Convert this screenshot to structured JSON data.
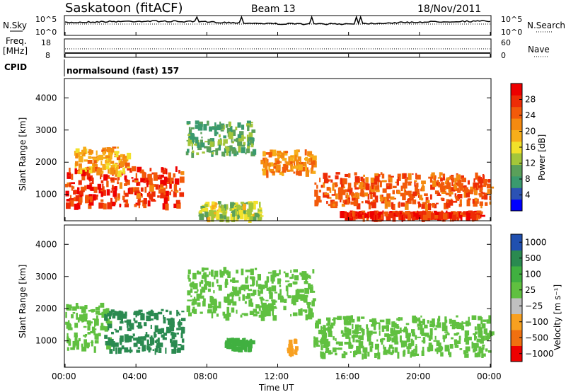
{
  "header": {
    "station": "Saskatoon (fitACF)",
    "beam": "Beam 13",
    "date": "18/Nov/2011"
  },
  "panels": {
    "nsky_label": "N.Sky",
    "nsearch_label": "N.Search",
    "noise_ticks": [
      "10^5",
      "10^0"
    ],
    "freq_label_1": "Freq.",
    "freq_label_2": "[MHz]",
    "freq_ticks": [
      "18",
      "8"
    ],
    "nave_label": "Nave",
    "nave_ticks": [
      "60",
      "0"
    ],
    "cpid_label": "CPID",
    "cpid_value": "normalsound (fast) 157"
  },
  "colors": {
    "power": [
      "#0000ff",
      "#2b52b4",
      "#3a9a6e",
      "#5aa05a",
      "#a4c63a",
      "#f2e12a",
      "#f7ae1a",
      "#f48a10",
      "#f25a0a",
      "#ee2c06",
      "#ee0000"
    ],
    "velocity": [
      "#ee0000",
      "#f07010",
      "#f8a020",
      "#c0c0c0",
      "#60c040",
      "#40b040",
      "#2a8a50",
      "#2050b0"
    ]
  },
  "chart_data": [
    {
      "type": "heatmap",
      "title": "",
      "ylabel": "Slant Range [km]",
      "yticks": [
        "1000",
        "2000",
        "3000",
        "4000"
      ],
      "ylim": [
        180,
        4600
      ],
      "x_unit": "UT hours",
      "colorbar": {
        "label": "Power [dB]",
        "ticks": [
          "4",
          "8",
          "12",
          "16",
          "20",
          "24",
          "28"
        ],
        "range": [
          0,
          32
        ]
      },
      "regions": [
        {
          "t0": 0.0,
          "t1": 6.6,
          "r0": 700,
          "r1": 1900,
          "value": 27
        },
        {
          "t0": 0.5,
          "t1": 3.5,
          "r0": 1700,
          "r1": 2500,
          "value": 20
        },
        {
          "t0": 6.8,
          "t1": 10.6,
          "r0": 2300,
          "r1": 3300,
          "value": 10
        },
        {
          "t0": 7.5,
          "t1": 11.0,
          "r0": 300,
          "r1": 800,
          "value": 14
        },
        {
          "t0": 11.0,
          "t1": 14.0,
          "r0": 1700,
          "r1": 2400,
          "value": 22
        },
        {
          "t0": 14.0,
          "t1": 24.0,
          "r0": 700,
          "r1": 1700,
          "value": 25
        },
        {
          "t0": 15.5,
          "t1": 23.5,
          "r0": 350,
          "r1": 500,
          "value": 28
        }
      ]
    },
    {
      "type": "heatmap",
      "title": "",
      "ylabel": "Slant Range [km]",
      "yticks": [
        "1000",
        "2000",
        "3000",
        "4000"
      ],
      "ylim": [
        180,
        4600
      ],
      "xlabel": "Time UT",
      "xticks": [
        "00:00",
        "04:00",
        "08:00",
        "12:00",
        "16:00",
        "20:00",
        "00:00"
      ],
      "xlim": [
        0,
        24
      ],
      "colorbar": {
        "label": "Velocity [m s⁻¹]",
        "ticks": [
          "1000",
          "500",
          "100",
          "25",
          "−25",
          "−100",
          "−500",
          "−1000"
        ]
      },
      "regions": [
        {
          "t0": 0.0,
          "t1": 2.5,
          "r0": 800,
          "r1": 2200,
          "value": 0
        },
        {
          "t0": 2.2,
          "t1": 6.6,
          "r0": 700,
          "r1": 2000,
          "value": 300
        },
        {
          "t0": 6.8,
          "t1": 14.0,
          "r0": 1800,
          "r1": 3300,
          "value": 0
        },
        {
          "t0": 14.0,
          "t1": 24.0,
          "r0": 600,
          "r1": 1800,
          "value": 0
        },
        {
          "t0": 9.0,
          "t1": 10.5,
          "r0": 800,
          "r1": 1100,
          "value": 60
        },
        {
          "t0": 12.5,
          "t1": 13.0,
          "r0": 600,
          "r1": 1100,
          "value": -150
        }
      ]
    }
  ]
}
